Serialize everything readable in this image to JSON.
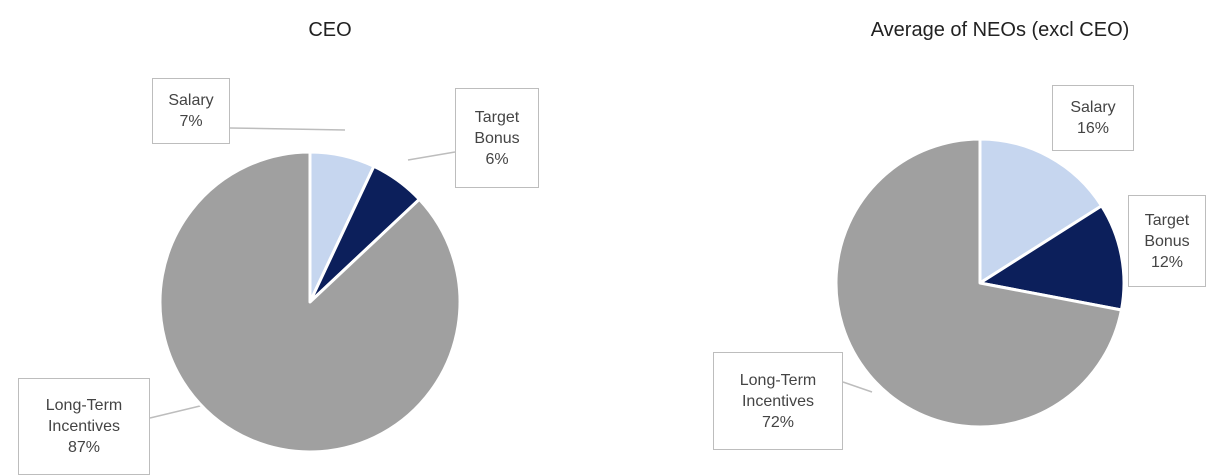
{
  "chart_data": [
    {
      "type": "pie",
      "title": "CEO",
      "categories": [
        "Salary",
        "Target Bonus",
        "Long-Term Incentives"
      ],
      "values": [
        7,
        6,
        87
      ],
      "value_labels": [
        "7%",
        "6%",
        "87%"
      ],
      "colors": [
        "#c6d6ef",
        "#0c1f5b",
        "#a0a0a0"
      ]
    },
    {
      "type": "pie",
      "title": "Average of NEOs (excl CEO)",
      "categories": [
        "Salary",
        "Target Bonus",
        "Long-Term Incentives"
      ],
      "values": [
        16,
        12,
        72
      ],
      "value_labels": [
        "16%",
        "12%",
        "72%"
      ],
      "colors": [
        "#c6d6ef",
        "#0c1f5b",
        "#a0a0a0"
      ]
    }
  ]
}
